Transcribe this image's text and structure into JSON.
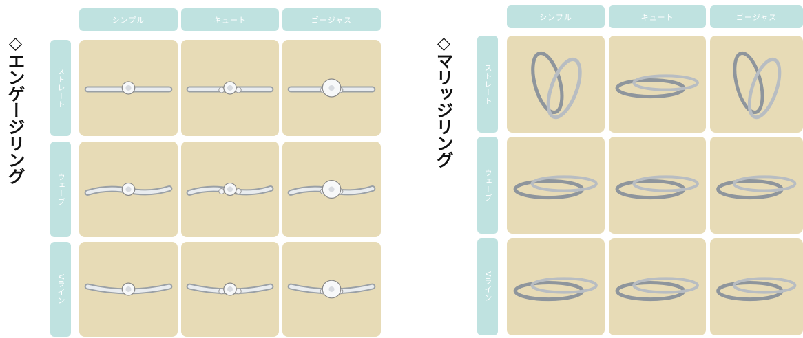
{
  "engagement": {
    "title": "◇エンゲージリング",
    "columns": [
      "シンプル",
      "キュート",
      "ゴージャス"
    ],
    "rows": [
      "ストレート",
      "ウェーブ",
      "Vライン"
    ]
  },
  "marriage": {
    "title": "◇マリッジリング",
    "columns": [
      "シンプル",
      "キュート",
      "ゴージャス"
    ],
    "rows": [
      "ストレート",
      "ウェーブ",
      "Vライン"
    ]
  }
}
